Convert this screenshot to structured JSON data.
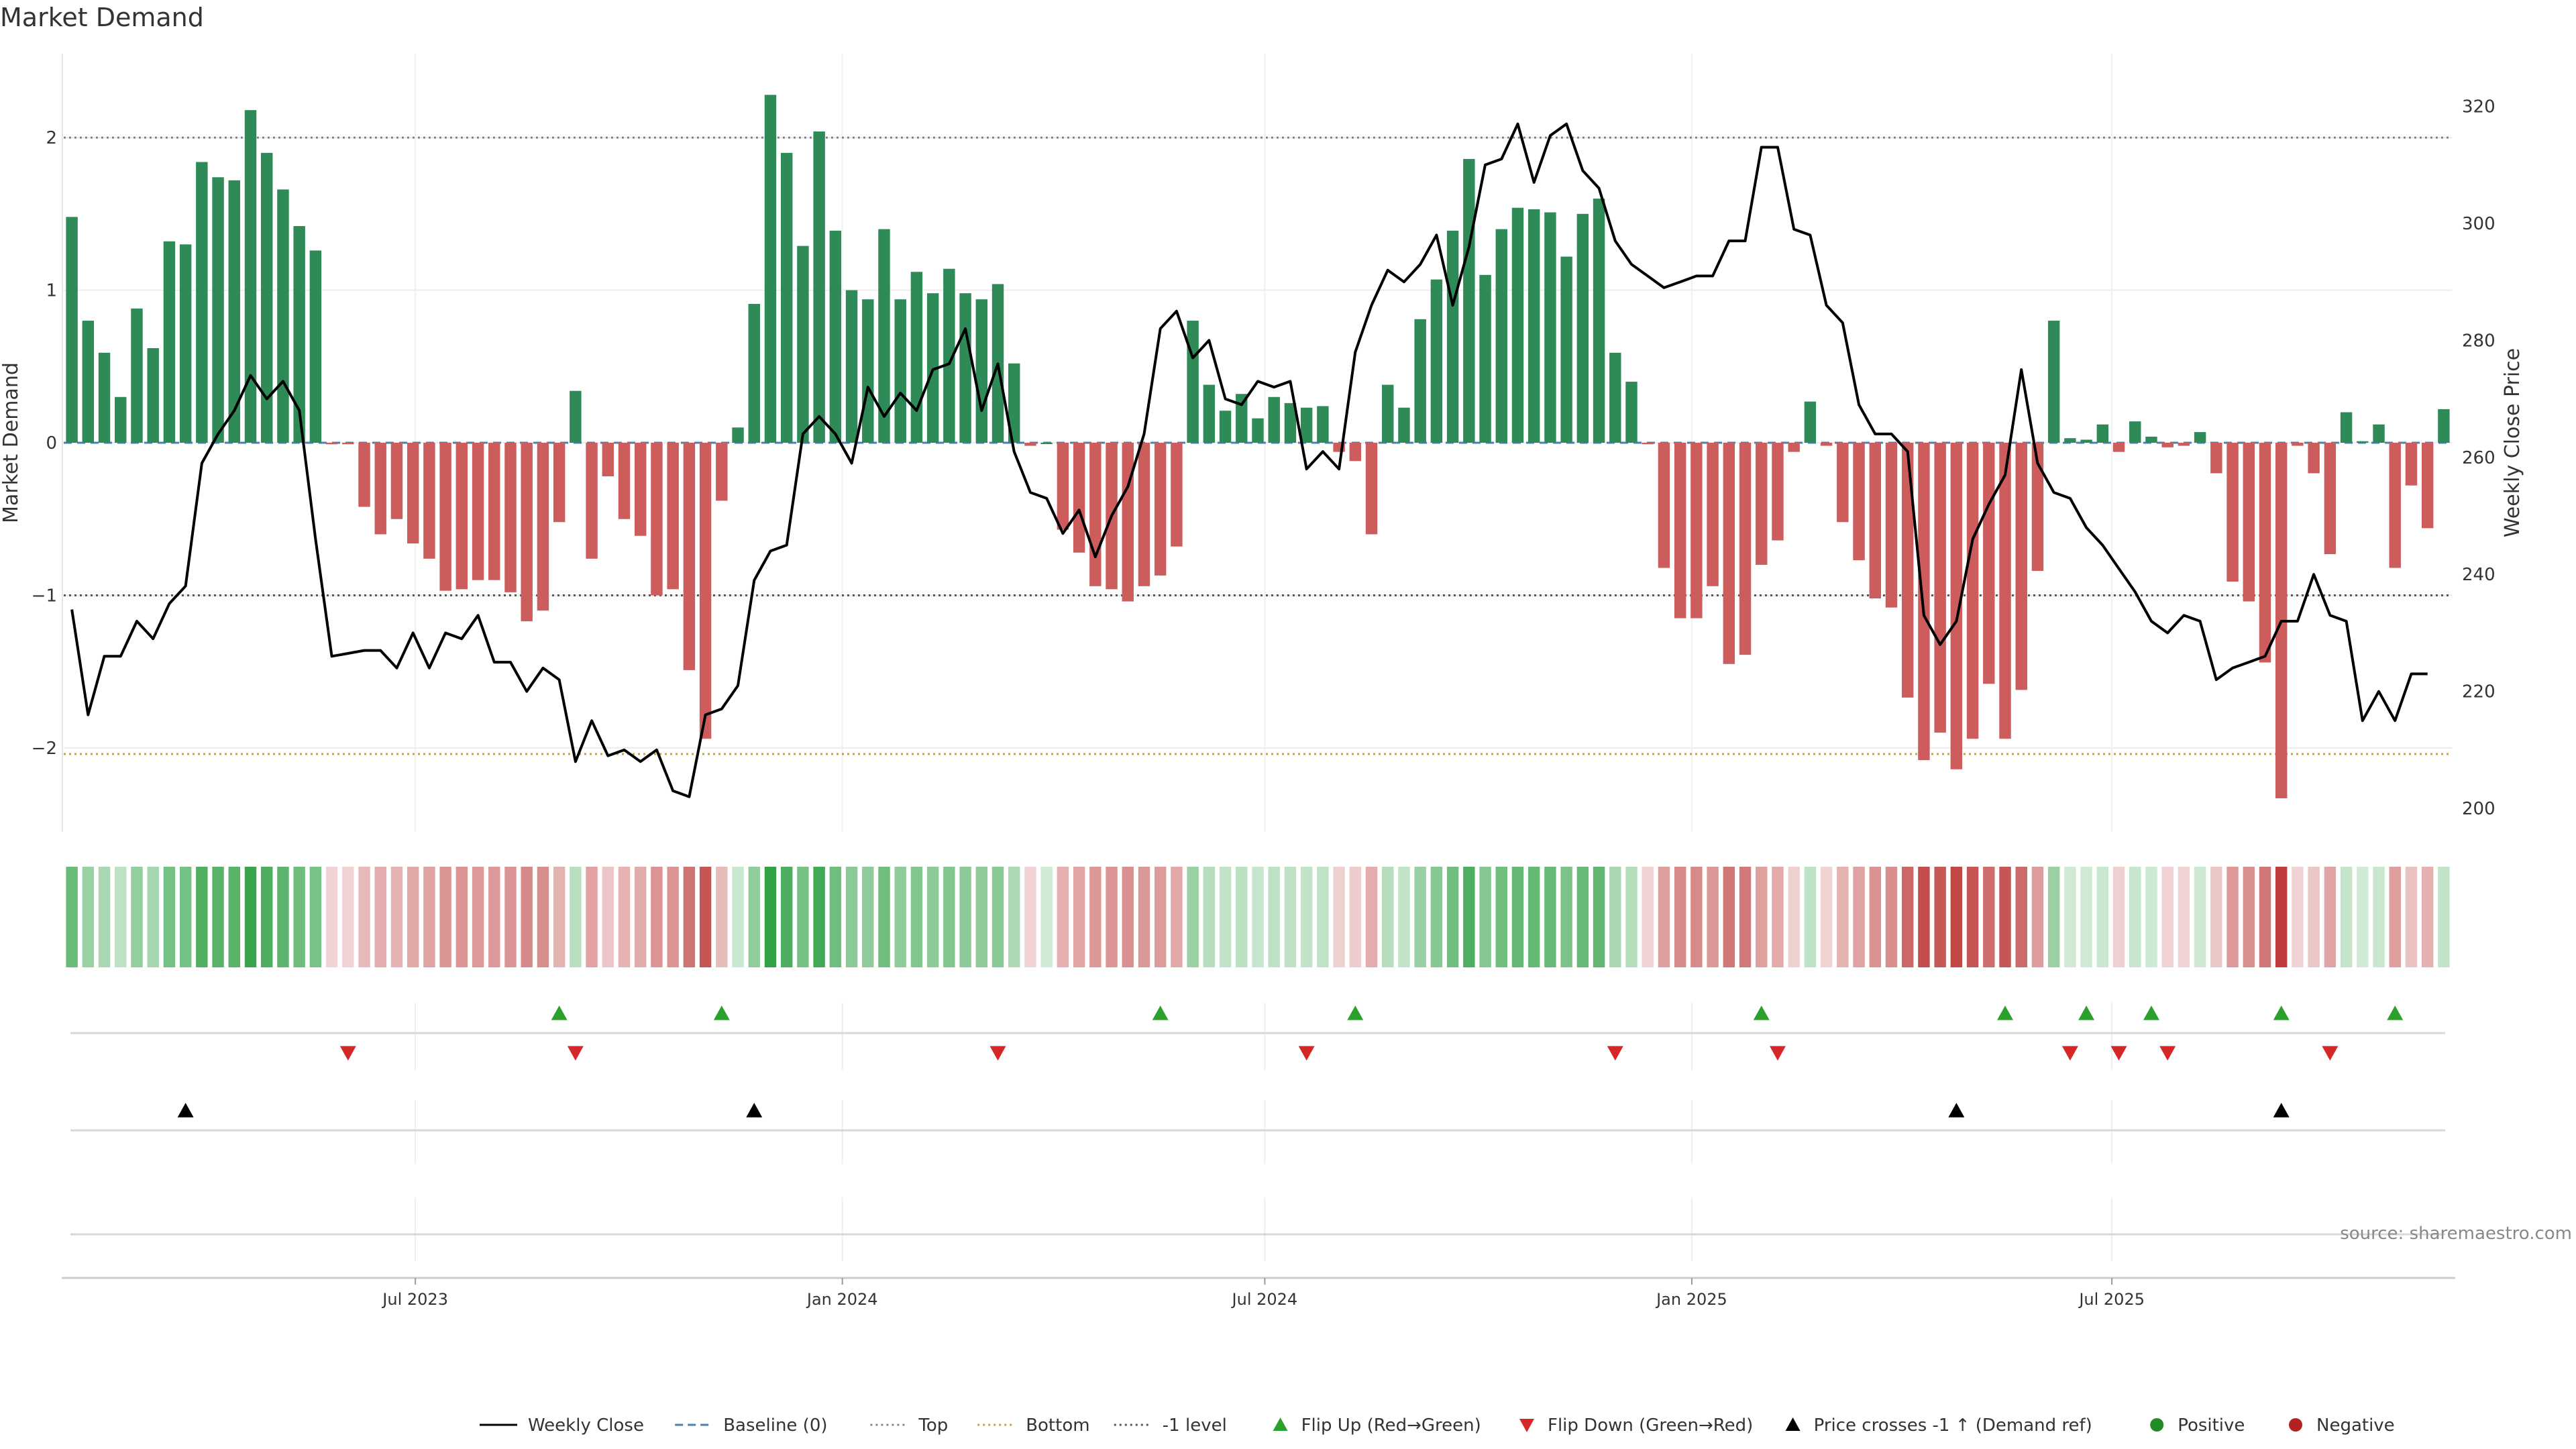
{
  "title": "Market Demand",
  "source": "source: sharemaestro.com",
  "colors": {
    "positive_bar": "#2e8b57",
    "negative_bar": "#cd5c5c",
    "price_line": "#000000",
    "top_line": "#8080a0",
    "bottom_line": "#d4a017",
    "minus1_line": "#555555",
    "baseline": "#4682b4",
    "flip_up": "#2ca02c",
    "flip_down": "#d62728",
    "cross": "#000000",
    "positive_dot": "#228b22",
    "negative_dot": "#b22222"
  },
  "legend": [
    {
      "label": "Weekly Close",
      "icon": "solid-line"
    },
    {
      "label": "Baseline (0)",
      "icon": "dashed-line"
    },
    {
      "label": "Top",
      "icon": "dotted-line-purple"
    },
    {
      "label": "Bottom",
      "icon": "dotted-line-orange"
    },
    {
      "label": "-1 level",
      "icon": "dotted-line-gray"
    },
    {
      "label": "Flip Up (Red→Green)",
      "icon": "triangle-up-green"
    },
    {
      "label": "Flip Down (Green→Red)",
      "icon": "triangle-down-red"
    },
    {
      "label": "Price crosses -1 ↑ (Demand ref)",
      "icon": "triangle-up-black"
    },
    {
      "label": "Positive",
      "icon": "dot-green"
    },
    {
      "label": "Negative",
      "icon": "dot-red"
    }
  ],
  "chart_data": {
    "type": "bar",
    "title": "Market Demand",
    "ylabel": "Market Demand",
    "y2label": "Weekly Close Price",
    "ylim": [
      -2.55,
      2.55
    ],
    "y2lim": [
      196,
      329
    ],
    "yticks": [
      "2",
      "1",
      "0",
      "−1",
      "−2"
    ],
    "y2ticks": [
      "320",
      "300",
      "280",
      "260",
      "240",
      "220",
      "200"
    ],
    "xticks": [
      "Jul 2023",
      "Jan 2024",
      "Jul 2024",
      "Jan 2025",
      "Jul 2025"
    ],
    "levels": {
      "top": 2.0,
      "bottom": -2.04,
      "minus_one": -1.0,
      "baseline": 0
    },
    "start_date": "2023-02-03",
    "frequency": "weekly",
    "series": [
      {
        "name": "Market Demand",
        "values": [
          1.48,
          0.8,
          0.59,
          0.3,
          0.88,
          0.62,
          1.32,
          1.3,
          1.84,
          1.74,
          1.72,
          2.18,
          1.9,
          1.66,
          1.42,
          1.26,
          -0.01,
          -0.01,
          -0.42,
          -0.6,
          -0.5,
          -0.66,
          -0.76,
          -0.97,
          -0.96,
          -0.9,
          -0.9,
          -0.98,
          -1.17,
          -1.1,
          -0.52,
          0.34,
          -0.76,
          -0.22,
          -0.5,
          -0.61,
          -1.0,
          -0.96,
          -1.49,
          -1.94,
          -0.38,
          0.1,
          0.91,
          2.28,
          1.9,
          1.29,
          2.04,
          1.39,
          1.0,
          0.94,
          1.4,
          0.94,
          1.12,
          0.98,
          1.14,
          0.98,
          0.94,
          1.04,
          0.52,
          -0.02,
          0.0,
          -0.57,
          -0.72,
          -0.94,
          -0.96,
          -1.04,
          -0.94,
          -0.87,
          -0.68,
          0.8,
          0.38,
          0.21,
          0.32,
          0.16,
          0.3,
          0.26,
          0.23,
          0.24,
          -0.06,
          -0.12,
          -0.6,
          0.38,
          0.23,
          0.81,
          1.07,
          1.39,
          1.86,
          1.1,
          1.4,
          1.54,
          1.53,
          1.51,
          1.22,
          1.5,
          1.6,
          0.59,
          0.4,
          -0.01,
          -0.82,
          -1.15,
          -1.15,
          -0.94,
          -1.45,
          -1.39,
          -0.8,
          -0.64,
          -0.06,
          0.27,
          -0.02,
          -0.52,
          -0.77,
          -1.02,
          -1.08,
          -1.67,
          -2.08,
          -1.9,
          -2.14,
          -1.94,
          -1.58,
          -1.94,
          -1.62,
          -0.84,
          0.8,
          0.03,
          0.02,
          0.12,
          -0.06,
          0.14,
          0.04,
          -0.03,
          -0.02,
          0.07,
          -0.2,
          -0.91,
          -1.04,
          -1.44,
          -2.33,
          -0.02,
          -0.2,
          -0.73,
          0.2,
          0.01,
          0.12,
          -0.82,
          -0.28,
          -0.56,
          0.22
        ]
      },
      {
        "name": "Weekly Close",
        "values": [
          234,
          216,
          226,
          226,
          232,
          229,
          235,
          238,
          259,
          264,
          268,
          274,
          270,
          273,
          268,
          246,
          226,
          226.5,
          227,
          227,
          224,
          230,
          224,
          230,
          229,
          233,
          225,
          225,
          220,
          224,
          222,
          208,
          215,
          209,
          210,
          208,
          210,
          203,
          202,
          216,
          217,
          221,
          239,
          244,
          245,
          264,
          267,
          264,
          259,
          272,
          267,
          271,
          268,
          275,
          276,
          282,
          268,
          276,
          261,
          254,
          253,
          247,
          251,
          243,
          250,
          255,
          264,
          282,
          285,
          277,
          280,
          270,
          269,
          273,
          272,
          273,
          258,
          261,
          258,
          278,
          286,
          292,
          290,
          293,
          298,
          286,
          296,
          310,
          311,
          317,
          307,
          315,
          317,
          309,
          306,
          297,
          293,
          291,
          289,
          290,
          291,
          291,
          297,
          297,
          313,
          313,
          299,
          298,
          286,
          283,
          269,
          264,
          264,
          261,
          233,
          228,
          232,
          246,
          252,
          257,
          275,
          259,
          254,
          253,
          248,
          245,
          241,
          237,
          232,
          230,
          233,
          232,
          222,
          224,
          225,
          226,
          232,
          232,
          240,
          233,
          232,
          215,
          220,
          215,
          223,
          223
        ]
      },
      {
        "name": "Flip Up (Red→Green)",
        "weeks": [
          30,
          40,
          67,
          79,
          104,
          119,
          124,
          128,
          136,
          143
        ]
      },
      {
        "name": "Flip Down (Green→Red)",
        "weeks": [
          17,
          31,
          57,
          76,
          95,
          105,
          123,
          126,
          129,
          139
        ]
      },
      {
        "name": "Price crosses -1 ↑ (Demand ref)",
        "weeks": [
          7,
          42,
          116,
          136
        ]
      }
    ]
  }
}
